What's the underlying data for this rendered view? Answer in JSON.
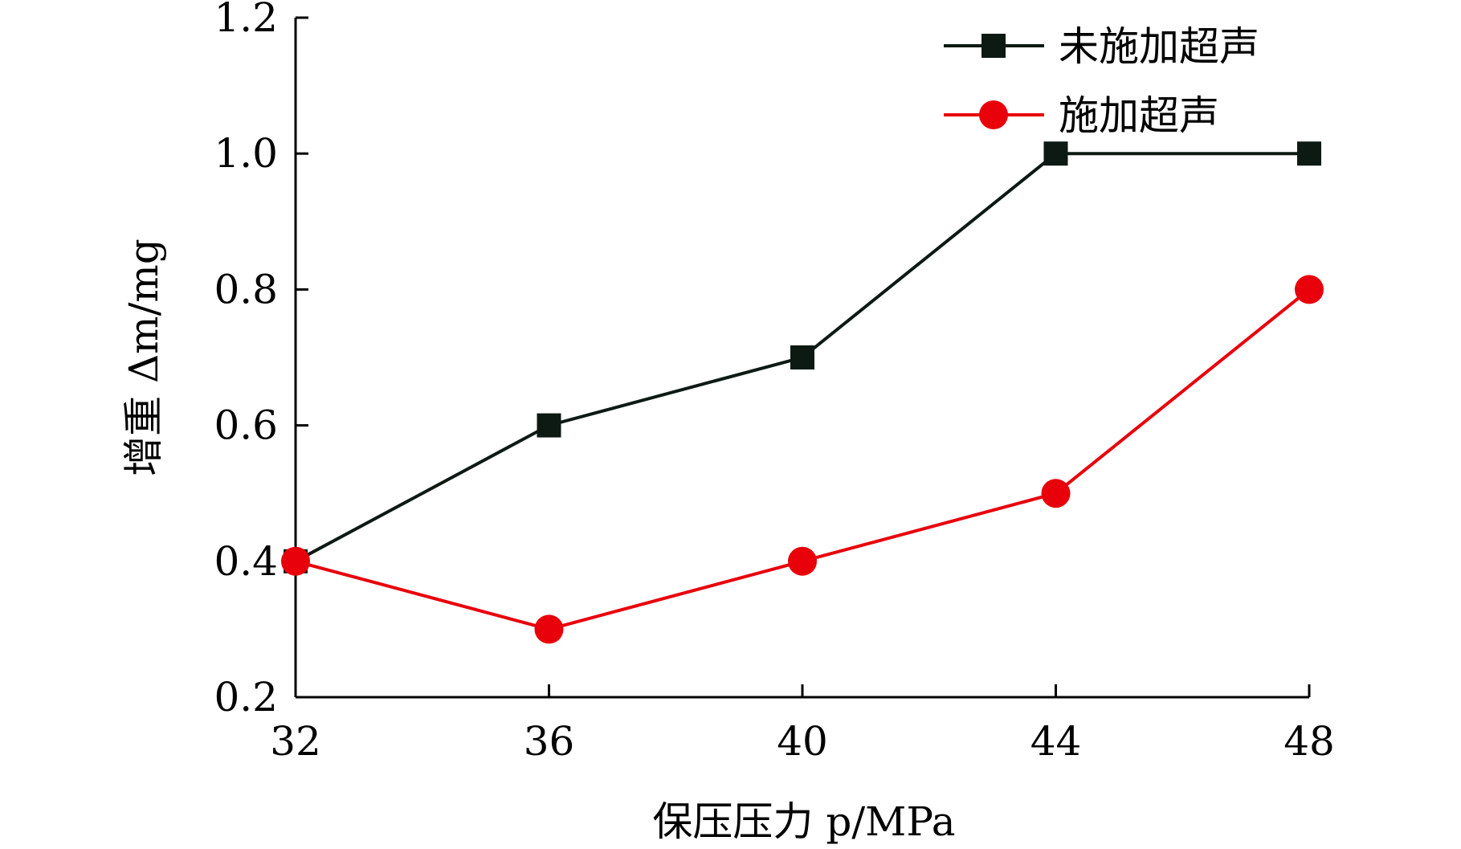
{
  "chart_data": {
    "type": "line",
    "x": [
      32,
      36,
      40,
      44,
      48
    ],
    "series": [
      {
        "name": "未施加超声",
        "values": [
          0.4,
          0.6,
          0.7,
          1.0,
          1.0
        ],
        "color": "#0d1a14",
        "marker": "square"
      },
      {
        "name": "施加超声",
        "values": [
          0.4,
          0.3,
          0.4,
          0.5,
          0.8
        ],
        "color": "#e8000b",
        "marker": "circle"
      }
    ],
    "xticks": [
      "32",
      "36",
      "40",
      "44",
      "48"
    ],
    "yticks": [
      "0.2",
      "0.4",
      "0.6",
      "0.8",
      "1.0",
      "1.2"
    ],
    "xlabel": "保压压力 p/MPa",
    "ylabel": "增重 Δm/mg",
    "xlim": [
      32,
      48
    ],
    "ylim": [
      0.2,
      1.2
    ],
    "grid": false,
    "legend_position": "top-right"
  }
}
